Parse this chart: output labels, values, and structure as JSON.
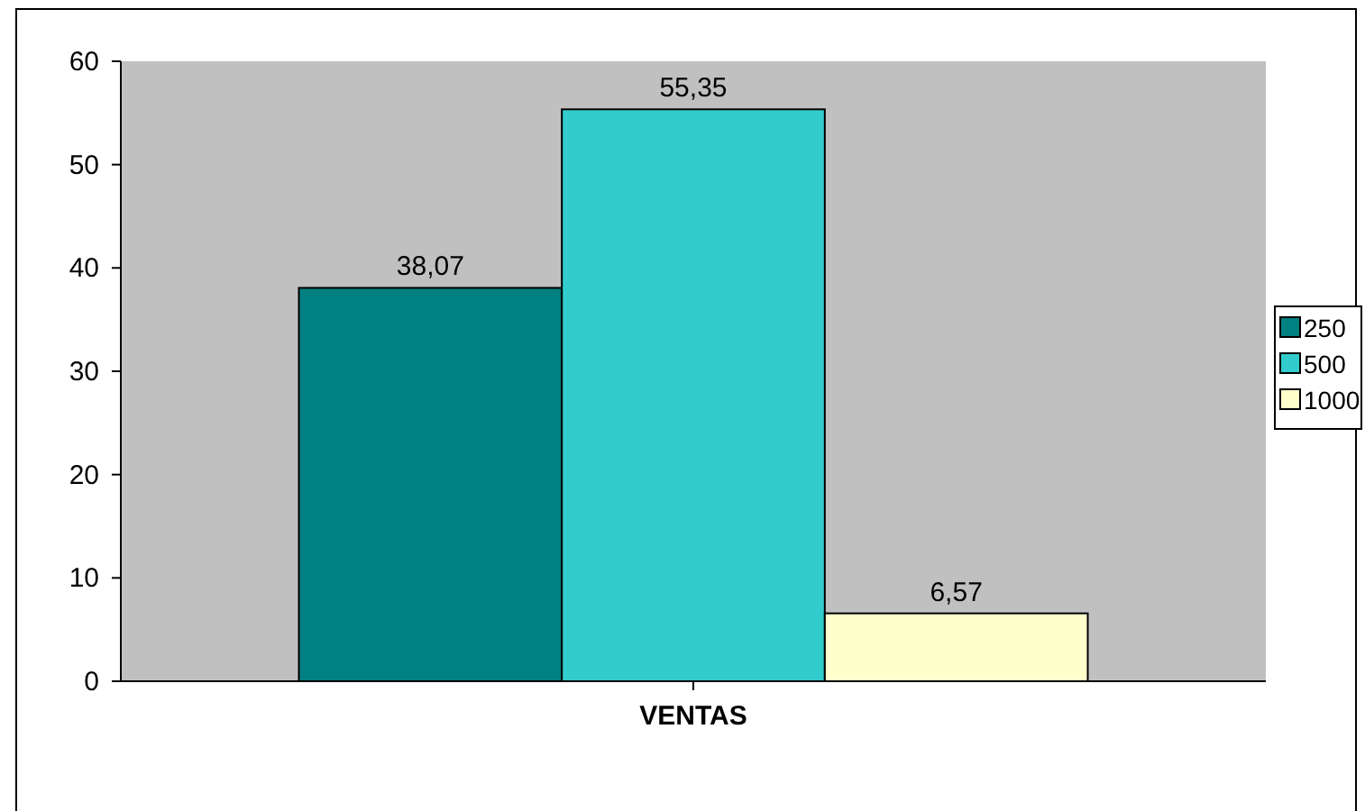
{
  "chart_data": {
    "type": "bar",
    "categories": [
      "VENTAS"
    ],
    "series": [
      {
        "name": "250",
        "color": "#008080",
        "values": [
          38.07
        ],
        "value_labels": [
          "38,07"
        ]
      },
      {
        "name": "500",
        "color": "#33cccc",
        "values": [
          55.35
        ],
        "value_labels": [
          "55,35"
        ]
      },
      {
        "name": "1000",
        "color": "#ffffcc",
        "values": [
          6.57
        ],
        "value_labels": [
          "6,57"
        ]
      }
    ],
    "ylim": [
      0,
      60
    ],
    "yticks": [
      0,
      10,
      20,
      30,
      40,
      50,
      60
    ],
    "grid": false,
    "legend": "right"
  }
}
